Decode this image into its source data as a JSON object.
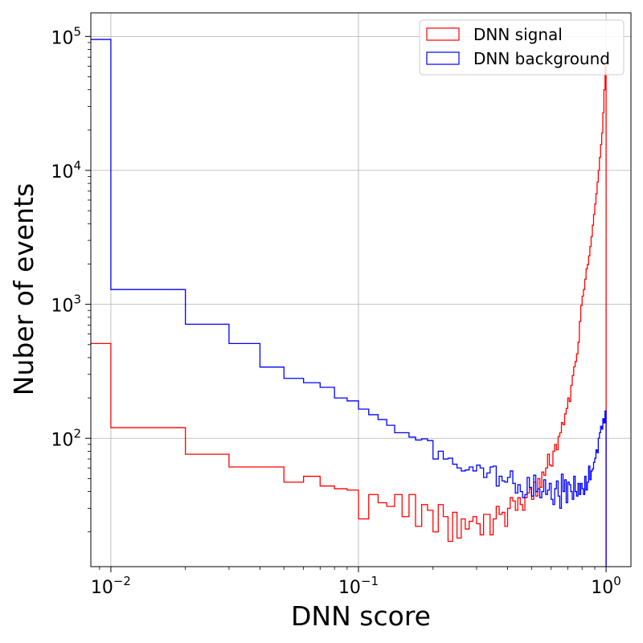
{
  "chart_data": {
    "type": "histogram-step",
    "xlabel": "DNN score",
    "ylabel": "Nuber of events",
    "xscale": "log",
    "yscale": "log",
    "xlim": [
      0.0083,
      1.26
    ],
    "ylim": [
      11,
      150000
    ],
    "grid": true,
    "legend_placement": "top-right",
    "x_ticks": [
      {
        "value": 0.01,
        "base": "10",
        "exp": "−2"
      },
      {
        "value": 0.1,
        "base": "10",
        "exp": "−1"
      },
      {
        "value": 1,
        "base": "10",
        "exp": "0"
      }
    ],
    "y_ticks": [
      {
        "value": 100,
        "base": "10",
        "exp": "2"
      },
      {
        "value": 1000,
        "base": "10",
        "exp": "3"
      },
      {
        "value": 10000,
        "base": "10",
        "exp": "4"
      },
      {
        "value": 100000,
        "base": "10",
        "exp": "5"
      }
    ],
    "series": [
      {
        "name": "DNN signal",
        "color": "#ff0000",
        "edges": [
          0.0,
          0.01,
          0.02,
          0.03,
          0.04,
          0.05,
          0.06,
          0.07,
          0.08,
          0.09,
          0.1,
          0.11,
          0.12,
          0.13,
          0.14,
          0.15,
          0.16,
          0.17,
          0.18,
          0.19,
          0.2,
          0.21,
          0.22,
          0.23,
          0.24,
          0.25,
          0.26,
          0.27,
          0.28,
          0.29,
          0.3,
          0.31,
          0.32,
          0.33,
          0.34,
          0.35,
          0.36,
          0.37,
          0.38,
          0.39,
          0.4,
          0.41,
          0.42,
          0.43,
          0.44,
          0.45,
          0.46,
          0.47,
          0.48,
          0.49,
          0.5,
          0.51,
          0.52,
          0.53,
          0.54,
          0.55,
          0.56,
          0.57,
          0.58,
          0.59,
          0.6,
          0.61,
          0.62,
          0.63,
          0.64,
          0.65,
          0.66,
          0.67,
          0.68,
          0.69,
          0.7,
          0.71,
          0.72,
          0.73,
          0.74,
          0.75,
          0.76,
          0.77,
          0.78,
          0.79,
          0.8,
          0.81,
          0.82,
          0.83,
          0.84,
          0.85,
          0.86,
          0.87,
          0.88,
          0.89,
          0.9,
          0.91,
          0.92,
          0.93,
          0.94,
          0.95,
          0.96,
          0.97,
          0.98,
          0.99,
          1.0
        ],
        "values": [
          510,
          120,
          76,
          61,
          61,
          47,
          52,
          44,
          42,
          41,
          25,
          38,
          33,
          31,
          38,
          26,
          38,
          22,
          32,
          29,
          20,
          32,
          26,
          17,
          28,
          18,
          25,
          21,
          24,
          26,
          23,
          19,
          27,
          27,
          19,
          25,
          31,
          27,
          28,
          22,
          30,
          36,
          34,
          29,
          36,
          32,
          29,
          36,
          39,
          42,
          35,
          47,
          37,
          50,
          43,
          56,
          53,
          60,
          76,
          63,
          62,
          80,
          90,
          82,
          103,
          110,
          131,
          126,
          152,
          167,
          200,
          188,
          248,
          294,
          342,
          374,
          427,
          521,
          745,
          980,
          1150,
          1290,
          1540,
          1840,
          1980,
          2300,
          2700,
          3200,
          3900,
          4700,
          5600,
          6700,
          8200,
          10000,
          12500,
          15600,
          19000,
          27000,
          40000,
          60000
        ]
      },
      {
        "name": "DNN background",
        "color": "#0000ff",
        "edges": [
          0.0,
          0.01,
          0.02,
          0.03,
          0.04,
          0.05,
          0.06,
          0.07,
          0.08,
          0.09,
          0.1,
          0.11,
          0.12,
          0.13,
          0.14,
          0.15,
          0.16,
          0.17,
          0.18,
          0.19,
          0.2,
          0.21,
          0.22,
          0.23,
          0.24,
          0.25,
          0.26,
          0.27,
          0.28,
          0.29,
          0.3,
          0.31,
          0.32,
          0.33,
          0.34,
          0.35,
          0.36,
          0.37,
          0.38,
          0.39,
          0.4,
          0.41,
          0.42,
          0.43,
          0.44,
          0.45,
          0.46,
          0.47,
          0.48,
          0.49,
          0.5,
          0.51,
          0.52,
          0.53,
          0.54,
          0.55,
          0.56,
          0.57,
          0.58,
          0.59,
          0.6,
          0.61,
          0.62,
          0.63,
          0.64,
          0.65,
          0.66,
          0.67,
          0.68,
          0.69,
          0.7,
          0.71,
          0.72,
          0.73,
          0.74,
          0.75,
          0.76,
          0.77,
          0.78,
          0.79,
          0.8,
          0.81,
          0.82,
          0.83,
          0.84,
          0.85,
          0.86,
          0.87,
          0.88,
          0.89,
          0.9,
          0.91,
          0.92,
          0.93,
          0.94,
          0.95,
          0.96,
          0.97,
          0.98,
          0.99,
          1.0
        ],
        "values": [
          95000,
          1290,
          710,
          510,
          340,
          280,
          260,
          240,
          200,
          190,
          165,
          150,
          138,
          125,
          110,
          110,
          102,
          97,
          99,
          96,
          70,
          80,
          70,
          71,
          64,
          60,
          57,
          58,
          61,
          57,
          63,
          60,
          51,
          55,
          61,
          62,
          44,
          52,
          48,
          47,
          51,
          57,
          46,
          39,
          45,
          40,
          36,
          38,
          51,
          43,
          37,
          53,
          40,
          42,
          36,
          40,
          49,
          38,
          41,
          46,
          35,
          32,
          42,
          48,
          37,
          30,
          54,
          40,
          49,
          33,
          47,
          45,
          40,
          35,
          52,
          40,
          37,
          46,
          38,
          46,
          42,
          38,
          52,
          41,
          47,
          62,
          49,
          57,
          59,
          66,
          71,
          82,
          78,
          100,
          110,
          123,
          117,
          140,
          130,
          160
        ]
      }
    ]
  }
}
